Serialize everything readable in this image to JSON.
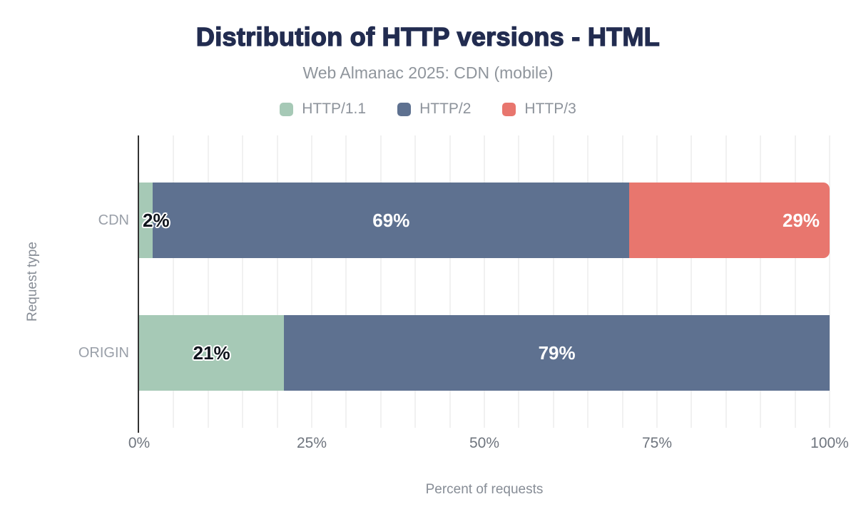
{
  "header": {
    "title": "Distribution of HTTP versions - HTML",
    "subtitle": "Web Almanac 2025: CDN (mobile)"
  },
  "legend": {
    "items": [
      {
        "label": "HTTP/1.1",
        "color": "#a6c9b6"
      },
      {
        "label": "HTTP/2",
        "color": "#5e7190"
      },
      {
        "label": "HTTP/3",
        "color": "#e8766e"
      }
    ]
  },
  "chart_data": {
    "type": "bar",
    "orientation": "horizontal",
    "stacked": true,
    "title": "Distribution of HTTP versions - HTML",
    "subtitle": "Web Almanac 2025: CDN (mobile)",
    "xlabel": "Percent of requests",
    "ylabel": "Request type",
    "xlim": [
      0,
      100
    ],
    "x_ticks": [
      "0%",
      "25%",
      "50%",
      "75%",
      "100%"
    ],
    "grid_step_pct": 5,
    "value_suffix": "%",
    "legend_position": "top",
    "grid_on": true,
    "categories": [
      "CDN",
      "ORIGIN"
    ],
    "series": [
      {
        "name": "HTTP/1.1",
        "color": "#a6c9b6",
        "label_color": "#10151d",
        "values": [
          2,
          21
        ],
        "label_align": [
          "left-out",
          "center"
        ],
        "rounded_right": [
          false,
          false
        ]
      },
      {
        "name": "HTTP/2",
        "color": "#5e7190",
        "label_color": "#ffffff",
        "values": [
          69,
          79
        ],
        "label_align": [
          "center",
          "center"
        ],
        "rounded_right": [
          false,
          false
        ]
      },
      {
        "name": "HTTP/3",
        "color": "#e8766e",
        "label_color": "#ffffff",
        "values": [
          29,
          0
        ],
        "label_align": [
          "right",
          "center"
        ],
        "rounded_right": [
          true,
          false
        ]
      }
    ]
  }
}
